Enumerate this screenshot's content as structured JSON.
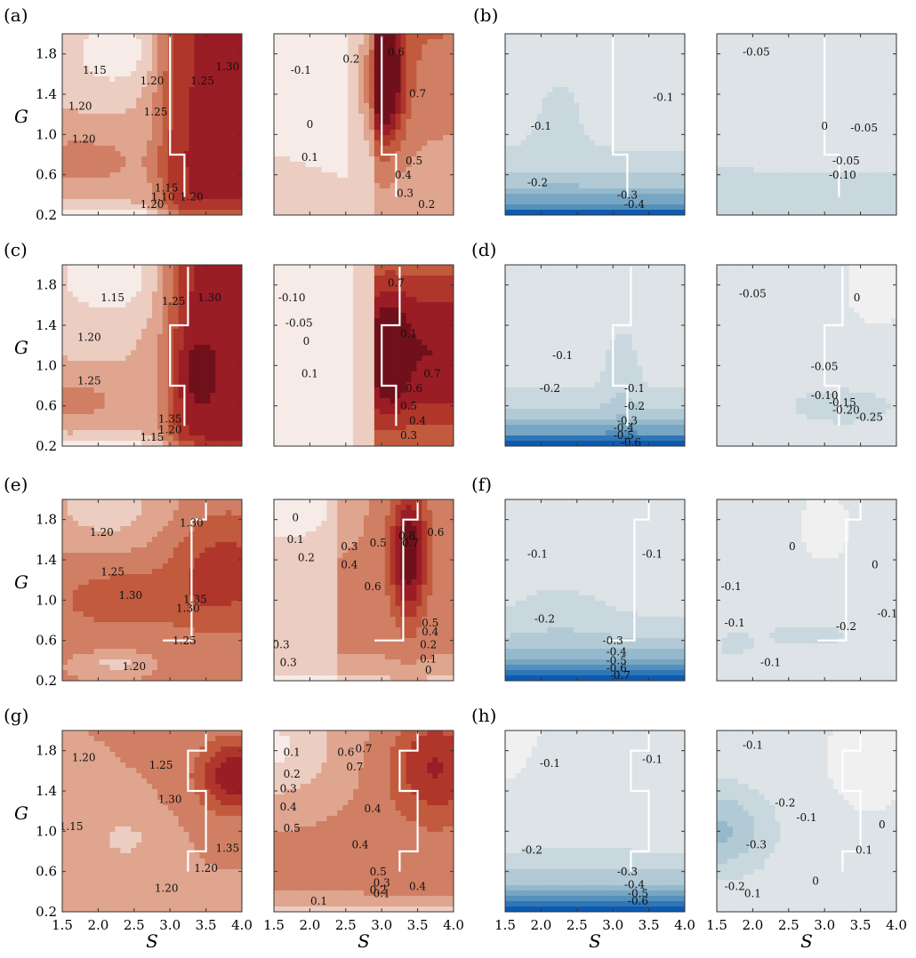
{
  "chart_data": {
    "type": "heatmap",
    "x_label": "S",
    "y_label": "G",
    "x_ticks": [
      "1.5",
      "2.0",
      "2.5",
      "3.0",
      "3.5",
      "4.0"
    ],
    "y_ticks": [
      "0.2",
      "0.6",
      "1.0",
      "1.4",
      "1.8"
    ],
    "xlim": [
      1.5,
      4.0
    ],
    "ylim": [
      0.2,
      2.0
    ],
    "colors": {
      "red_scale": [
        "#f6ebe6",
        "#eccdc1",
        "#dfa58f",
        "#d07f64",
        "#c25a3e",
        "#b0362b",
        "#9a1c25",
        "#6f101b"
      ],
      "blue_scale": [
        "#f0f0f0",
        "#dde3e6",
        "#c9d7de",
        "#b1cad6",
        "#95b9cc",
        "#77a6c3",
        "#5590bb",
        "#2f76b6",
        "#0d5ab0"
      ]
    },
    "panel_labels": [
      "(a)",
      "(b)",
      "(c)",
      "(d)",
      "(e)",
      "(f)",
      "(g)",
      "(h)"
    ],
    "panels": [
      {
        "label": "(a)",
        "scale": "red",
        "boundary": [
          [
            3.0,
            1.98
          ],
          [
            3.0,
            0.8
          ],
          [
            3.2,
            0.8
          ],
          [
            3.2,
            0.38
          ]
        ],
        "contour_labels": [
          "1.15",
          "1.20",
          "1.25",
          "1.30",
          "1.20",
          "1.25",
          "1.20",
          "1.10",
          "1.15",
          "1.20",
          "1.20"
        ]
      },
      {
        "label": "(a)",
        "scale": "red",
        "boundary": [
          [
            3.0,
            1.98
          ],
          [
            3.0,
            0.8
          ],
          [
            3.2,
            0.8
          ],
          [
            3.2,
            0.38
          ]
        ],
        "contour_labels": [
          "-0.1",
          "0.2",
          "0.6",
          "0.7",
          "0",
          "0.1",
          "0.5",
          "0.4",
          "0.3",
          "0.2"
        ]
      },
      {
        "label": "(b)",
        "scale": "blue",
        "boundary": [
          [
            3.0,
            1.98
          ],
          [
            3.0,
            0.8
          ],
          [
            3.2,
            0.8
          ],
          [
            3.2,
            0.38
          ]
        ],
        "contour_labels": [
          "-0.1",
          "-0.1",
          "-0.2",
          "-0.3",
          "-0.4"
        ]
      },
      {
        "label": "(b)",
        "scale": "blue",
        "boundary": [
          [
            3.0,
            1.98
          ],
          [
            3.0,
            0.8
          ],
          [
            3.2,
            0.8
          ],
          [
            3.2,
            0.38
          ]
        ],
        "contour_labels": [
          "-0.05",
          "0",
          "-0.05",
          "-0.05",
          "-0.10"
        ]
      },
      {
        "label": "(c)",
        "scale": "red",
        "boundary": [
          [
            3.25,
            1.98
          ],
          [
            3.25,
            1.4
          ],
          [
            3.0,
            1.4
          ],
          [
            3.0,
            0.8
          ],
          [
            3.2,
            0.8
          ],
          [
            3.2,
            0.4
          ]
        ],
        "contour_labels": [
          "1.15",
          "1.25",
          "1.30",
          "1.20",
          "1.25",
          "1.35",
          "1.20",
          "1.15"
        ]
      },
      {
        "label": "(c)",
        "scale": "red",
        "boundary": [
          [
            3.25,
            1.98
          ],
          [
            3.25,
            1.4
          ],
          [
            3.0,
            1.4
          ],
          [
            3.0,
            0.8
          ],
          [
            3.2,
            0.8
          ],
          [
            3.2,
            0.4
          ]
        ],
        "contour_labels": [
          "-0.10",
          "-0.05",
          "0",
          "0.1",
          "0.7",
          "0.1",
          "0.6",
          "0.7",
          "0.5",
          "0.4",
          "0.3"
        ]
      },
      {
        "label": "(d)",
        "scale": "blue",
        "boundary": [
          [
            3.25,
            1.98
          ],
          [
            3.25,
            1.4
          ],
          [
            3.0,
            1.4
          ],
          [
            3.0,
            0.8
          ],
          [
            3.2,
            0.8
          ],
          [
            3.2,
            0.4
          ]
        ],
        "contour_labels": [
          "-0.1",
          "-0.1",
          "-0.2",
          "-0.2",
          "-0.3",
          "-0.4",
          "-0.5",
          "-0.6"
        ]
      },
      {
        "label": "(d)",
        "scale": "blue",
        "boundary": [
          [
            3.25,
            1.98
          ],
          [
            3.25,
            1.4
          ],
          [
            3.0,
            1.4
          ],
          [
            3.0,
            0.8
          ],
          [
            3.2,
            0.8
          ],
          [
            3.2,
            0.4
          ]
        ],
        "contour_labels": [
          "-0.05",
          "0",
          "-0.05",
          "-0.10",
          "-0.15",
          "-0.20",
          "-0.25"
        ]
      },
      {
        "label": "(e)",
        "scale": "red",
        "boundary": [
          [
            3.5,
            1.98
          ],
          [
            3.5,
            1.8
          ],
          [
            3.3,
            1.8
          ],
          [
            3.3,
            0.6
          ],
          [
            2.9,
            0.6
          ]
        ],
        "contour_labels": [
          "1.20",
          "1.30",
          "1.25",
          "1.30",
          "1.35",
          "1.30",
          "1.25",
          "1.20"
        ]
      },
      {
        "label": "(e)",
        "scale": "red",
        "boundary": [
          [
            3.5,
            1.98
          ],
          [
            3.5,
            1.8
          ],
          [
            3.3,
            1.8
          ],
          [
            3.3,
            0.6
          ],
          [
            2.9,
            0.6
          ]
        ],
        "contour_labels": [
          "0",
          "0.1",
          "0.2",
          "0.3",
          "0.4",
          "0.5",
          "0.7",
          "0.8",
          "0.6",
          "0.6",
          "0.3",
          "0.3",
          "0.5",
          "0.4",
          "0.2",
          "0.1",
          "0"
        ]
      },
      {
        "label": "(f)",
        "scale": "blue",
        "boundary": [
          [
            3.5,
            1.98
          ],
          [
            3.5,
            1.8
          ],
          [
            3.3,
            1.8
          ],
          [
            3.3,
            0.6
          ],
          [
            2.9,
            0.6
          ]
        ],
        "contour_labels": [
          "-0.1",
          "-0.1",
          "-0.2",
          "-0.3",
          "-0.4",
          "-0.5",
          "-0.6",
          "-0.7"
        ]
      },
      {
        "label": "(f)",
        "scale": "blue",
        "boundary": [
          [
            3.5,
            1.98
          ],
          [
            3.5,
            1.8
          ],
          [
            3.3,
            1.8
          ],
          [
            3.3,
            0.6
          ],
          [
            2.9,
            0.6
          ]
        ],
        "contour_labels": [
          "0",
          "0",
          "-0.1",
          "-0.1",
          "-0.1",
          "-0.2",
          "-0.1"
        ]
      },
      {
        "label": "(g)",
        "scale": "red",
        "boundary": [
          [
            3.5,
            1.98
          ],
          [
            3.5,
            1.8
          ],
          [
            3.25,
            1.8
          ],
          [
            3.25,
            1.4
          ],
          [
            3.5,
            1.4
          ],
          [
            3.5,
            0.8
          ],
          [
            3.25,
            0.8
          ],
          [
            3.25,
            0.6
          ]
        ],
        "contour_labels": [
          "1.20",
          "1.25",
          "1.30",
          "1.35",
          "1.15",
          "1.20",
          "1.20"
        ]
      },
      {
        "label": "(g)",
        "scale": "red",
        "boundary": [
          [
            3.5,
            1.98
          ],
          [
            3.5,
            1.8
          ],
          [
            3.25,
            1.8
          ],
          [
            3.25,
            1.4
          ],
          [
            3.5,
            1.4
          ],
          [
            3.5,
            0.8
          ],
          [
            3.25,
            0.8
          ],
          [
            3.25,
            0.6
          ]
        ],
        "contour_labels": [
          "0.1",
          "0.2",
          "0.3",
          "0.4",
          "0.5",
          "0.6",
          "0.7",
          "0.7",
          "0.4",
          "0.4",
          "0.5",
          "0.4",
          "0.3",
          "0.2",
          "0.1",
          "0.1"
        ]
      },
      {
        "label": "(h)",
        "scale": "blue",
        "boundary": [
          [
            3.5,
            1.98
          ],
          [
            3.5,
            1.8
          ],
          [
            3.25,
            1.8
          ],
          [
            3.25,
            1.4
          ],
          [
            3.5,
            1.4
          ],
          [
            3.5,
            0.8
          ],
          [
            3.25,
            0.8
          ],
          [
            3.25,
            0.6
          ]
        ],
        "contour_labels": [
          "-0.1",
          "-0.1",
          "-0.2",
          "-0.3",
          "-0.4",
          "-0.5",
          "-0.6"
        ]
      },
      {
        "label": "(h)",
        "scale": "blue",
        "boundary": [
          [
            3.5,
            1.98
          ],
          [
            3.5,
            1.8
          ],
          [
            3.25,
            1.8
          ],
          [
            3.25,
            1.4
          ],
          [
            3.5,
            1.4
          ],
          [
            3.5,
            0.8
          ],
          [
            3.25,
            0.8
          ],
          [
            3.25,
            0.6
          ]
        ],
        "contour_labels": [
          "-0.1",
          "-0.2",
          "-0.3",
          "-0.1",
          "0.1",
          "0",
          "0",
          "-0.2",
          "0.1"
        ]
      }
    ]
  }
}
